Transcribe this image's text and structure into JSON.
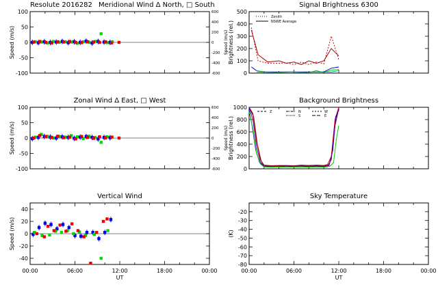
{
  "figure": {
    "header_left": "Resolute   2016282",
    "x_axis_label": "UT",
    "x_tick_labels": [
      "00:00",
      "06:00",
      "12:00",
      "18:00",
      "00:00"
    ]
  },
  "chart_data": [
    {
      "id": "meridional",
      "type": "scatter",
      "title": "Meridional Wind   Δ North, □ South",
      "ylabel": "Speed (m/s)",
      "ylabel_right": "Speed (m/s)",
      "xlim": [
        0,
        24
      ],
      "ylim": [
        -100,
        100
      ],
      "yticks": [
        -100,
        -50,
        0,
        50,
        100
      ],
      "yticks_right": [
        -600,
        -400,
        -200,
        0,
        200,
        400,
        600
      ],
      "series": [
        {
          "color": "#0000ee",
          "error_bars": true,
          "x": [
            0.3,
            1.1,
            1.9,
            2.7,
            3.5,
            4.3,
            5.1,
            5.9,
            6.7,
            7.5,
            8.3,
            9.1,
            9.9,
            10.7
          ],
          "y": [
            0,
            -1,
            2,
            0,
            1,
            3,
            -1,
            2,
            0,
            4,
            -2,
            3,
            1,
            0
          ]
        },
        {
          "color": "#00dd00",
          "x": [
            0.7,
            1.5,
            2.3,
            3.1,
            3.9,
            4.7,
            5.5,
            6.3,
            7.1,
            7.9,
            8.7,
            9.5,
            10.3,
            11.0
          ],
          "y": [
            2,
            1,
            -2,
            3,
            0,
            2,
            1,
            -3,
            2,
            0,
            3,
            28,
            -1,
            2
          ]
        },
        {
          "color": "#ee0000",
          "x": [
            0.5,
            1.3,
            2.1,
            2.9,
            3.7,
            4.5,
            5.3,
            6.1,
            6.9,
            7.7,
            8.5,
            9.3,
            10.1,
            10.9,
            11.9
          ],
          "y": [
            1,
            3,
            0,
            -2,
            2,
            1,
            3,
            0,
            -1,
            2,
            1,
            0,
            2,
            -2,
            0
          ]
        }
      ]
    },
    {
      "id": "zonal",
      "type": "scatter",
      "title": "Zonal Wind      Δ East, □ West",
      "ylabel": "Speed (m/s)",
      "ylabel_right": "Speed (m/s)",
      "xlim": [
        0,
        24
      ],
      "ylim": [
        -100,
        100
      ],
      "yticks": [
        -100,
        -50,
        0,
        50,
        100
      ],
      "yticks_right": [
        -600,
        -400,
        -200,
        0,
        200,
        400,
        600
      ],
      "series": [
        {
          "color": "#0000ee",
          "error_bars": true,
          "x": [
            0.3,
            1.1,
            1.9,
            2.7,
            3.5,
            4.3,
            5.1,
            5.9,
            6.7,
            7.5,
            8.3,
            9.1,
            9.9,
            10.7
          ],
          "y": [
            -2,
            2,
            5,
            3,
            0,
            4,
            2,
            -1,
            3,
            5,
            2,
            -3,
            2,
            1
          ]
        },
        {
          "color": "#00dd00",
          "x": [
            0.7,
            1.5,
            2.3,
            3.1,
            3.9,
            4.7,
            5.5,
            6.3,
            7.1,
            7.9,
            8.7,
            9.5,
            10.3,
            11.0
          ],
          "y": [
            3,
            12,
            6,
            0,
            5,
            3,
            8,
            4,
            -2,
            6,
            2,
            -14,
            4,
            3
          ]
        },
        {
          "color": "#ee0000",
          "x": [
            0.5,
            1.3,
            2.1,
            2.9,
            3.7,
            4.5,
            5.3,
            6.1,
            6.9,
            7.7,
            8.5,
            9.3,
            10.1,
            10.9,
            11.9
          ],
          "y": [
            0,
            8,
            4,
            2,
            6,
            1,
            3,
            -3,
            5,
            2,
            -1,
            4,
            0,
            3,
            0
          ]
        }
      ]
    },
    {
      "id": "vertical",
      "type": "scatter",
      "title": "Vertical Wind",
      "ylabel": "Speed (m/s)",
      "xlim": [
        0,
        24
      ],
      "ylim": [
        -50,
        50
      ],
      "yticks": [
        -40,
        -20,
        0,
        20,
        40
      ],
      "series": [
        {
          "color": "#0000ee",
          "error_bars": true,
          "x": [
            0.4,
            1.2,
            2.0,
            2.8,
            3.6,
            4.4,
            5.2,
            6.0,
            6.8,
            7.6,
            8.4,
            9.2,
            10.0,
            10.8
          ],
          "y": [
            -1,
            10,
            17,
            15,
            8,
            15,
            10,
            -3,
            -4,
            2,
            2,
            -8,
            2,
            23
          ]
        },
        {
          "color": "#00dd00",
          "x": [
            0.6,
            1.6,
            2.6,
            3.4,
            4.2,
            5.0,
            5.8,
            6.6,
            7.4,
            8.6,
            9.5,
            10.4
          ],
          "y": [
            2,
            -3,
            -2,
            4,
            2,
            5,
            0,
            3,
            -3,
            -1,
            -40,
            5
          ]
        },
        {
          "color": "#ee0000",
          "x": [
            0.9,
            1.9,
            2.4,
            3.2,
            4.0,
            4.8,
            5.6,
            6.4,
            7.2,
            8.1,
            8.9,
            9.8,
            10.3
          ],
          "y": [
            0,
            -5,
            12,
            5,
            14,
            4,
            16,
            5,
            -5,
            -48,
            2,
            20,
            24
          ]
        }
      ]
    },
    {
      "id": "signal",
      "type": "line",
      "title": "Signal Brightness        6300",
      "ylabel": "Brightness (rel.)",
      "xlim": [
        0,
        24
      ],
      "ylim": [
        0,
        500
      ],
      "yticks": [
        0,
        100,
        200,
        300,
        400,
        500
      ],
      "legend": [
        "Zenith",
        "NSWE Average"
      ],
      "series": [
        {
          "color": "#cc0000",
          "dash": "2,2",
          "x": [
            0.3,
            1.2,
            2.5,
            4,
            5,
            6,
            7,
            8,
            9,
            10,
            11,
            12
          ],
          "y": [
            370,
            100,
            80,
            80,
            85,
            70,
            90,
            70,
            90,
            75,
            300,
            110
          ]
        },
        {
          "color": "#aa0000",
          "x": [
            0.3,
            1.2,
            2.5,
            4,
            5,
            6,
            7,
            8,
            9,
            10,
            11,
            12
          ],
          "y": [
            350,
            150,
            90,
            100,
            80,
            90,
            70,
            100,
            80,
            100,
            200,
            140
          ]
        },
        {
          "color": "#0000cc",
          "x": [
            0.3,
            1,
            2,
            4,
            6,
            8,
            10,
            11,
            12
          ],
          "y": [
            50,
            20,
            10,
            10,
            10,
            10,
            10,
            40,
            50
          ]
        },
        {
          "color": "#00cc00",
          "x": [
            1,
            2,
            4,
            6,
            8,
            9,
            10,
            11,
            12
          ],
          "y": [
            20,
            10,
            5,
            10,
            5,
            20,
            5,
            25,
            30
          ]
        },
        {
          "color": "#00aaaa",
          "x": [
            1,
            3,
            5,
            7,
            9,
            11,
            12
          ],
          "y": [
            10,
            5,
            10,
            5,
            10,
            10,
            20
          ]
        }
      ]
    },
    {
      "id": "background",
      "type": "line",
      "title": "Background Brightness",
      "ylabel": "Brightness (rel.)",
      "xlim": [
        0,
        24
      ],
      "ylim": [
        0,
        1000
      ],
      "yticks": [
        0,
        200,
        400,
        600,
        800,
        1000
      ],
      "legend": [
        "Z",
        "N",
        "S",
        "W",
        "E"
      ],
      "series": [
        {
          "color": "#cc0000",
          "x": [
            0,
            0.5,
            1,
            1.5,
            2,
            3,
            4,
            5,
            6,
            7,
            8,
            9,
            10,
            10.5,
            11,
            11.5,
            12
          ],
          "y": [
            1000,
            900,
            450,
            150,
            60,
            50,
            55,
            55,
            50,
            60,
            55,
            60,
            55,
            70,
            200,
            800,
            1000
          ]
        },
        {
          "color": "#880000",
          "x": [
            0,
            0.6,
            1.1,
            1.6,
            2,
            3,
            4,
            5,
            6,
            7,
            8,
            9,
            10,
            10.6,
            11,
            11.5,
            12
          ],
          "y": [
            1000,
            850,
            400,
            130,
            50,
            45,
            45,
            50,
            45,
            55,
            50,
            55,
            50,
            60,
            150,
            700,
            980
          ]
        },
        {
          "color": "#0000cc",
          "x": [
            0,
            0.4,
            0.9,
            1.4,
            2,
            3,
            4,
            5,
            6,
            7,
            8,
            9,
            10,
            10.7,
            11.2,
            11.6,
            12
          ],
          "y": [
            960,
            700,
            300,
            100,
            40,
            35,
            40,
            35,
            40,
            40,
            35,
            40,
            35,
            50,
            300,
            850,
            950
          ]
        },
        {
          "color": "#6600aa",
          "x": [
            0,
            0.5,
            1,
            1.5,
            2,
            3,
            4,
            5,
            6,
            7,
            8,
            9,
            10,
            10.7,
            11.1,
            11.6,
            12
          ],
          "y": [
            1000,
            800,
            350,
            110,
            45,
            40,
            40,
            45,
            40,
            45,
            40,
            45,
            40,
            55,
            250,
            820,
            960
          ]
        },
        {
          "color": "#00cc00",
          "x": [
            0,
            0.5,
            1,
            1.5,
            2,
            3,
            4,
            5,
            6,
            7,
            8,
            9,
            10,
            10.8,
            11.3,
            11.7,
            12
          ],
          "y": [
            930,
            650,
            250,
            80,
            30,
            25,
            25,
            30,
            25,
            30,
            25,
            30,
            25,
            40,
            100,
            500,
            700
          ]
        }
      ]
    },
    {
      "id": "skytemp",
      "type": "line",
      "title": "Sky Temperature",
      "ylabel": "(K)",
      "xlim": [
        0,
        24
      ],
      "ylim": [
        -80,
        -10
      ],
      "yticks": [
        -80,
        -70,
        -60,
        -50,
        -40,
        -30,
        -20
      ],
      "series": []
    }
  ]
}
